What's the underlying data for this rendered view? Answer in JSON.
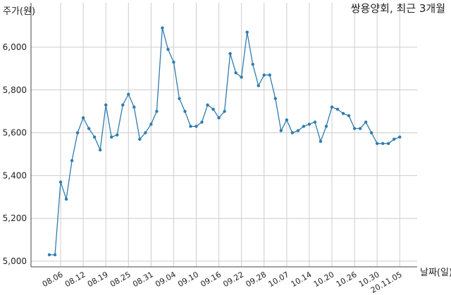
{
  "chart_data": {
    "type": "line",
    "title": "쌍용양회, 최근 3개월",
    "ylabel": "주가(원)",
    "xlabel": "날짜(일)",
    "ylim": [
      5000,
      6100
    ],
    "yticks": [
      5000,
      5200,
      5400,
      5600,
      5800,
      6000
    ],
    "ytick_labels": [
      "5,000",
      "5,200",
      "5,400",
      "5,600",
      "5,800",
      "6,000"
    ],
    "grid": true,
    "colors": {
      "line": "#2e7cb0",
      "grid": "#cccccc",
      "axis": "#444444"
    },
    "x_ticks": [
      {
        "index": 2,
        "label": "08.06"
      },
      {
        "index": 6,
        "label": "08.12"
      },
      {
        "index": 10,
        "label": "08.19"
      },
      {
        "index": 14,
        "label": "08.25"
      },
      {
        "index": 18,
        "label": "08.31"
      },
      {
        "index": 22,
        "label": "09.04"
      },
      {
        "index": 26,
        "label": "09.10"
      },
      {
        "index": 30,
        "label": "09.16"
      },
      {
        "index": 34,
        "label": "09.22"
      },
      {
        "index": 38,
        "label": "09.28"
      },
      {
        "index": 42,
        "label": "10.07"
      },
      {
        "index": 46,
        "label": "10.14"
      },
      {
        "index": 50,
        "label": "10.20"
      },
      {
        "index": 54,
        "label": "10.26"
      },
      {
        "index": 58,
        "label": "10.30"
      },
      {
        "index": 62,
        "label": "20.11.05"
      }
    ],
    "series": [
      {
        "values": [
          5030,
          5030,
          5370,
          5290,
          5470,
          5600,
          5670,
          5620,
          5580,
          5520,
          5730,
          5580,
          5590,
          5730,
          5780,
          5720,
          5570,
          5600,
          5640,
          5700,
          6090,
          5990,
          5930,
          5760,
          5700,
          5630,
          5630,
          5650,
          5730,
          5710,
          5670,
          5700,
          5970,
          5880,
          5860,
          6070,
          5920,
          5820,
          5870,
          5870,
          5760,
          5610,
          5660,
          5600,
          5610,
          5630,
          5640,
          5650,
          5560,
          5630,
          5720,
          5710,
          5690,
          5680,
          5620,
          5620,
          5650,
          5600,
          5550,
          5550,
          5550,
          5570,
          5580
        ]
      }
    ]
  }
}
